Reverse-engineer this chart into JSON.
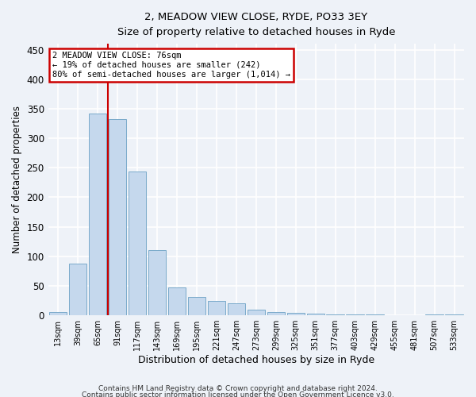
{
  "title": "2, MEADOW VIEW CLOSE, RYDE, PO33 3EY",
  "subtitle": "Size of property relative to detached houses in Ryde",
  "xlabel": "Distribution of detached houses by size in Ryde",
  "ylabel": "Number of detached properties",
  "footnote1": "Contains HM Land Registry data © Crown copyright and database right 2024.",
  "footnote2": "Contains public sector information licensed under the Open Government Licence v3.0.",
  "categories": [
    "13sqm",
    "39sqm",
    "65sqm",
    "91sqm",
    "117sqm",
    "143sqm",
    "169sqm",
    "195sqm",
    "221sqm",
    "247sqm",
    "273sqm",
    "299sqm",
    "325sqm",
    "351sqm",
    "377sqm",
    "403sqm",
    "429sqm",
    "455sqm",
    "481sqm",
    "507sqm",
    "533sqm"
  ],
  "values": [
    6,
    88,
    342,
    333,
    244,
    110,
    48,
    31,
    25,
    20,
    10,
    6,
    4,
    3,
    2,
    1,
    1,
    0,
    0,
    1,
    2
  ],
  "bar_color": "#c5d8ed",
  "bar_edge_color": "#7aaaca",
  "background_color": "#eef2f8",
  "grid_color": "#ffffff",
  "property_line_x": 2.5,
  "annotation_text_line1": "2 MEADOW VIEW CLOSE: 76sqm",
  "annotation_text_line2": "← 19% of detached houses are smaller (242)",
  "annotation_text_line3": "80% of semi-detached houses are larger (1,014) →",
  "annotation_box_color": "#ffffff",
  "annotation_box_edge_color": "#cc0000",
  "property_line_color": "#cc0000",
  "ylim": [
    0,
    460
  ],
  "yticks": [
    0,
    50,
    100,
    150,
    200,
    250,
    300,
    350,
    400,
    450
  ]
}
